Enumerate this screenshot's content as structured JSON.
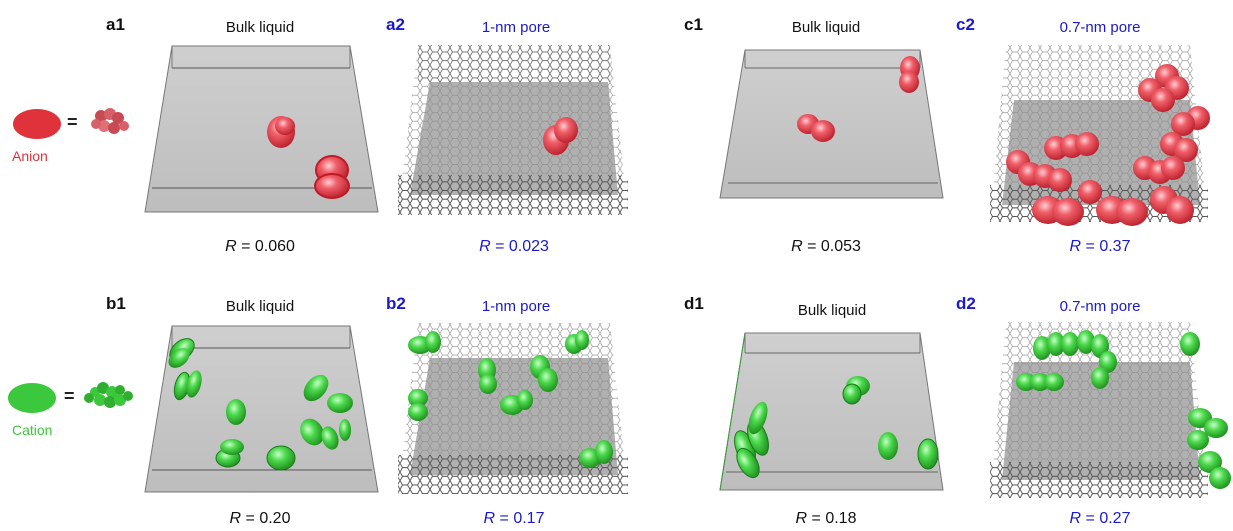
{
  "colors": {
    "anion": "#e0323a",
    "cation": "#3cc83c",
    "pore_label": "#1a1acc",
    "bulk_label": "#111111",
    "box_fill": "#c8c8c8"
  },
  "legend": {
    "anion_label": "Anion",
    "cation_label": "Cation",
    "equals": "="
  },
  "panels": {
    "a1": {
      "letter": "a1",
      "title": "Bulk liquid",
      "r_symbol": "R",
      "r_value": "= 0.060"
    },
    "a2": {
      "letter": "a2",
      "title": "1-nm pore",
      "r_symbol": "R",
      "r_value": "= 0.023"
    },
    "c1": {
      "letter": "c1",
      "title": "Bulk liquid",
      "r_symbol": "R",
      "r_value": "= 0.053"
    },
    "c2": {
      "letter": "c2",
      "title": "0.7-nm pore",
      "r_symbol": "R",
      "r_value": "= 0.37"
    },
    "b1": {
      "letter": "b1",
      "title": "Bulk liquid",
      "r_symbol": "R",
      "r_value": "= 0.20"
    },
    "b2": {
      "letter": "b2",
      "title": "1-nm pore",
      "r_symbol": "R",
      "r_value": "= 0.17"
    },
    "d1": {
      "letter": "d1",
      "title": "Bulk liquid",
      "r_symbol": "R",
      "r_value": "= 0.18"
    },
    "d2": {
      "letter": "d2",
      "title": "0.7-nm pore",
      "r_symbol": "R",
      "r_value": "= 0.27"
    }
  }
}
